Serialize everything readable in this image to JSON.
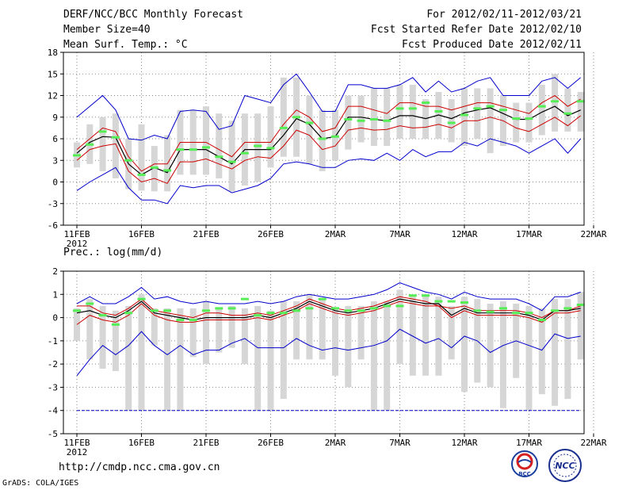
{
  "header": {
    "title": "DERF/NCC/BCC Monthly Forecast",
    "member_size": "Member Size=40",
    "variable": "Mean Surf. Temp.: °C",
    "forecast_period": "For 2012/02/11-2012/03/21",
    "fcst_started": "Fcst Started Refer Date 2012/02/10",
    "fcst_produced": "Fcst Produced Date 2012/02/11"
  },
  "panel2_label": "Prec.: log(mm/d)",
  "footer": {
    "url": "http://cmdp.ncc.cma.gov.cn",
    "credit": "GrADS: COLA/IGES"
  },
  "logos": {
    "bcc": "BCC",
    "ncc": "NCC"
  },
  "colors": {
    "envelope": "#0000cc",
    "spread": "#cc0000",
    "mean": "#000000",
    "obs": "#55ee55",
    "box": "#d6d6d6",
    "grid": "#888888"
  },
  "chart_data": [
    {
      "type": "line",
      "title": "Mean Surf. Temp.: °C",
      "x": [
        "11FEB",
        "12FEB",
        "13FEB",
        "14FEB",
        "15FEB",
        "16FEB",
        "17FEB",
        "18FEB",
        "19FEB",
        "20FEB",
        "21FEB",
        "22FEB",
        "23FEB",
        "24FEB",
        "25FEB",
        "26FEB",
        "27FEB",
        "28FEB",
        "29FEB",
        "1MAR",
        "2MAR",
        "3MAR",
        "4MAR",
        "5MAR",
        "6MAR",
        "7MAR",
        "8MAR",
        "9MAR",
        "10MAR",
        "11MAR",
        "12MAR",
        "13MAR",
        "14MAR",
        "15MAR",
        "16MAR",
        "17MAR",
        "18MAR",
        "19MAR",
        "20MAR",
        "21MAR"
      ],
      "xticks": [
        "11FEB",
        "16FEB",
        "21FEB",
        "26FEB",
        "2MAR",
        "7MAR",
        "12MAR",
        "17MAR",
        "22MAR"
      ],
      "xtick_sub": "2012",
      "yticks": [
        -6,
        -3,
        0,
        3,
        6,
        9,
        12,
        15,
        18
      ],
      "ylim": [
        -6,
        18
      ],
      "series": [
        {
          "name": "max",
          "values": [
            9,
            10.5,
            12,
            10,
            6,
            5.8,
            6.5,
            6,
            9.8,
            10,
            9.8,
            7.3,
            7.8,
            12,
            11.5,
            11,
            13.5,
            15,
            12.5,
            9.8,
            9.8,
            13.5,
            13.5,
            13,
            13,
            13.5,
            14.5,
            12.5,
            14,
            12.5,
            13,
            14,
            14.5,
            12,
            12,
            12,
            14,
            14.5,
            13,
            14.5
          ]
        },
        {
          "name": "upper",
          "values": [
            4.5,
            6,
            7.5,
            7,
            3.5,
            1.5,
            2.5,
            2.5,
            5.5,
            5.5,
            5.5,
            4.5,
            3.5,
            5.5,
            5.5,
            5.5,
            8,
            10,
            9,
            7,
            7.5,
            10.5,
            10.5,
            10,
            9.5,
            11,
            11,
            10.5,
            10.5,
            10,
            10.5,
            11,
            11,
            10.5,
            10,
            9.5,
            11,
            12,
            10.5,
            11.5
          ]
        },
        {
          "name": "mean",
          "values": [
            4,
            5.5,
            6.3,
            6.2,
            2.5,
            1,
            2,
            1.3,
            4.5,
            4.5,
            4.5,
            3.5,
            2.5,
            4.5,
            4.5,
            4.5,
            6.5,
            8.8,
            8,
            6,
            6.3,
            9,
            9,
            8.7,
            8.5,
            9.2,
            9.2,
            8.8,
            9.3,
            8.8,
            9.6,
            10,
            10.3,
            9.5,
            8.7,
            8.7,
            9.7,
            10.5,
            9.2,
            10
          ]
        },
        {
          "name": "lower",
          "values": [
            3,
            4.5,
            5,
            5.3,
            1.5,
            0,
            0.5,
            -0.2,
            2.8,
            2.8,
            3.2,
            2.5,
            1.8,
            3,
            3.5,
            3.3,
            5,
            7.2,
            6.5,
            4.5,
            5,
            7.2,
            7.5,
            7.2,
            7.3,
            7.8,
            7.5,
            7.6,
            8,
            7.5,
            8.5,
            8.5,
            9,
            8.5,
            7.5,
            7,
            8,
            9,
            7.8,
            9.2
          ]
        },
        {
          "name": "min",
          "values": [
            -1.2,
            0,
            1,
            2,
            -0.8,
            -2.5,
            -2.5,
            -3,
            -0.5,
            -0.8,
            -0.5,
            -0.5,
            -1.5,
            -1,
            -0.5,
            0.5,
            2.5,
            2.8,
            2.5,
            2,
            2,
            3,
            3.2,
            3,
            4,
            3,
            4.5,
            3.5,
            4.2,
            4.2,
            5.5,
            5,
            6,
            5.5,
            5,
            4,
            5,
            6,
            4,
            6
          ]
        },
        {
          "name": "box_top",
          "values": [
            5.5,
            8,
            9,
            9.5,
            6,
            8,
            5,
            6.5,
            10,
            10,
            10.5,
            9.5,
            8.5,
            9.5,
            9.5,
            10.5,
            14.5,
            14.5,
            12,
            10,
            10,
            12,
            12,
            13,
            13,
            13.5,
            13.5,
            11.5,
            12.5,
            11.5,
            13,
            13,
            13,
            12,
            11,
            11,
            13.5,
            15,
            13,
            12.5
          ]
        },
        {
          "name": "box_bottom",
          "values": [
            2,
            2.5,
            1.5,
            0.5,
            -1,
            -1.2,
            -1.3,
            -1.3,
            1,
            1,
            1,
            0.5,
            -1.3,
            -0.5,
            0,
            2,
            3.5,
            3.5,
            2.5,
            1.5,
            3,
            4.5,
            5.5,
            5,
            5,
            6,
            6,
            6,
            6,
            5.5,
            5,
            6,
            4,
            5,
            5.5,
            5.5,
            6.5,
            7,
            7,
            7
          ]
        },
        {
          "name": "observed",
          "values": [
            3.7,
            5.2,
            7,
            6.2,
            3,
            1,
            2,
            1.6,
            4.5,
            4.5,
            4.8,
            3.5,
            2.8,
            4,
            5,
            4.7,
            7.5,
            9,
            8.2,
            6,
            6.3,
            8.7,
            8.5,
            8.7,
            8.5,
            10.2,
            10.2,
            11,
            9.8,
            8.2,
            9.3,
            10.2,
            10.5,
            10,
            8.8,
            8.8,
            10.5,
            11.2,
            9.5,
            11.2
          ]
        }
      ]
    },
    {
      "type": "line",
      "title": "Prec.: log(mm/d)",
      "x": [
        "11FEB",
        "12FEB",
        "13FEB",
        "14FEB",
        "15FEB",
        "16FEB",
        "17FEB",
        "18FEB",
        "19FEB",
        "20FEB",
        "21FEB",
        "22FEB",
        "23FEB",
        "24FEB",
        "25FEB",
        "26FEB",
        "27FEB",
        "28FEB",
        "29FEB",
        "1MAR",
        "2MAR",
        "3MAR",
        "4MAR",
        "5MAR",
        "6MAR",
        "7MAR",
        "8MAR",
        "9MAR",
        "10MAR",
        "11MAR",
        "12MAR",
        "13MAR",
        "14MAR",
        "15MAR",
        "16MAR",
        "17MAR",
        "18MAR",
        "19MAR",
        "20MAR",
        "21MAR"
      ],
      "xticks": [
        "11FEB",
        "16FEB",
        "21FEB",
        "26FEB",
        "2MAR",
        "7MAR",
        "12MAR",
        "17MAR",
        "22MAR"
      ],
      "xtick_sub": "2012",
      "yticks": [
        -5,
        -4,
        -3,
        -2,
        -1,
        0,
        1,
        2
      ],
      "ylim": [
        -5,
        2
      ],
      "series": [
        {
          "name": "max",
          "values": [
            0.6,
            0.9,
            0.6,
            0.6,
            0.9,
            1.3,
            0.8,
            0.9,
            0.7,
            0.6,
            0.7,
            0.6,
            0.6,
            0.6,
            0.7,
            0.6,
            0.7,
            0.9,
            1,
            0.9,
            0.8,
            0.8,
            0.9,
            1,
            1.2,
            1.5,
            1.3,
            1.1,
            1,
            0.8,
            1.1,
            0.9,
            0.8,
            0.8,
            0.8,
            0.6,
            0.3,
            0.9,
            0.9,
            1.1
          ]
        },
        {
          "name": "upper",
          "values": [
            0.5,
            0.5,
            0.2,
            0.1,
            0.4,
            0.8,
            0.3,
            0.2,
            0.1,
            0,
            0.2,
            0.2,
            0.1,
            0.1,
            0.2,
            0.1,
            0.3,
            0.5,
            0.8,
            0.6,
            0.4,
            0.3,
            0.4,
            0.5,
            0.7,
            0.9,
            0.8,
            0.7,
            0.5,
            0.4,
            0.5,
            0.3,
            0.3,
            0.3,
            0.3,
            0.2,
            0,
            0.3,
            0.3,
            0.5
          ]
        },
        {
          "name": "mean",
          "values": [
            0.2,
            0.3,
            0.1,
            0,
            0.3,
            0.7,
            0.2,
            0.1,
            0,
            -0.1,
            0,
            0,
            0,
            0,
            0.1,
            0,
            0.2,
            0.4,
            0.7,
            0.5,
            0.3,
            0.2,
            0.3,
            0.4,
            0.6,
            0.8,
            0.7,
            0.6,
            0.6,
            0.1,
            0.4,
            0.2,
            0.2,
            0.2,
            0.2,
            0.1,
            -0.1,
            0.3,
            0.3,
            0.4
          ]
        },
        {
          "name": "lower",
          "values": [
            -0.3,
            0.1,
            -0.1,
            -0.2,
            0.1,
            0.6,
            0.1,
            -0.1,
            -0.2,
            -0.2,
            -0.1,
            -0.1,
            -0.1,
            -0.1,
            0,
            -0.1,
            0.1,
            0.3,
            0.6,
            0.4,
            0.2,
            0.1,
            0.2,
            0.3,
            0.5,
            0.7,
            0.6,
            0.5,
            0.5,
            0,
            0.3,
            0.1,
            0.1,
            0.1,
            0.1,
            0,
            -0.2,
            0.2,
            0.2,
            0.3
          ]
        },
        {
          "name": "min",
          "values": [
            -2.5,
            -1.8,
            -1.2,
            -1.6,
            -1.2,
            -0.6,
            -1.2,
            -1.6,
            -1.2,
            -1.6,
            -1.4,
            -1.4,
            -1.1,
            -0.9,
            -1.3,
            -1.3,
            -1.3,
            -0.9,
            -1.2,
            -1.4,
            -1.3,
            -1.4,
            -1.3,
            -1.2,
            -1,
            -0.5,
            -0.8,
            -1.1,
            -0.9,
            -1.3,
            -0.8,
            -1,
            -1.5,
            -1.2,
            -1,
            -1.2,
            -1.4,
            -0.7,
            -0.9,
            -0.8
          ]
        },
        {
          "name": "box_top",
          "values": [
            0.4,
            0.8,
            0.5,
            0.3,
            0.5,
            1,
            0.4,
            0.4,
            0.4,
            0.4,
            0.7,
            0.4,
            0.5,
            0.4,
            0.5,
            0.3,
            0.7,
            0.7,
            1,
            0.8,
            0.4,
            0.5,
            0.5,
            0.7,
            0.7,
            1.2,
            1,
            1,
            0.9,
            0.5,
            0.9,
            0.8,
            0.6,
            0.7,
            0.6,
            0.5,
            0.4,
            0.8,
            0.8,
            1.1
          ]
        },
        {
          "name": "box_bottom",
          "values": [
            -1,
            -1.8,
            -2.2,
            -2.3,
            -4,
            -4,
            -1.2,
            -4,
            -4,
            -1.7,
            -2,
            -1.5,
            -1.3,
            -2,
            -4,
            -4,
            -3.5,
            -1.8,
            -1.8,
            -1.8,
            -2.5,
            -3,
            -1.8,
            -4,
            -4,
            -2,
            -2.5,
            -2.5,
            -2.5,
            -1.8,
            -3.2,
            -2.8,
            -3,
            -3.9,
            -2.6,
            -4,
            -3.3,
            -3.8,
            -3.5,
            -1.8
          ]
        },
        {
          "name": "observed",
          "values": [
            0.3,
            0.6,
            0.1,
            -0.3,
            0.2,
            0.8,
            0.3,
            0.3,
            -0.1,
            -0.1,
            0.3,
            0.4,
            0.4,
            0.8,
            0.1,
            0.2,
            0.2,
            0.3,
            0.4,
            0.8,
            0.4,
            0.3,
            0.3,
            0.4,
            0.5,
            0.5,
            0.95,
            0.95,
            0.7,
            0.7,
            0.65,
            0.3,
            0.25,
            0.4,
            0.2,
            0.2,
            -0.1,
            0.3,
            0.4,
            0.55
          ]
        },
        {
          "name": "baseline",
          "values": [
            -4,
            -4,
            -4,
            -4,
            -4,
            -4,
            -4,
            -4,
            -4,
            -4,
            -4,
            -4,
            -4,
            -4,
            -4,
            -4,
            -4,
            -4,
            -4,
            -4,
            -4,
            -4,
            -4,
            -4,
            -4,
            -4,
            -4,
            -4,
            -4,
            -4,
            -4,
            -4,
            -4,
            -4,
            -4,
            -4,
            -4,
            -4,
            -4,
            -4
          ]
        }
      ]
    }
  ]
}
